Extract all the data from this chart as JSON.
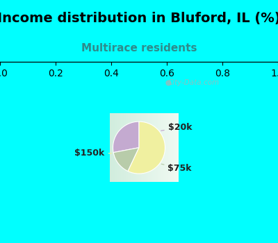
{
  "title": "Income distribution in Bluford, IL (%)",
  "subtitle": "Multirace residents",
  "title_color": "#000000",
  "subtitle_color": "#2e8b8b",
  "slices": [
    {
      "label": "$20k",
      "value": 28,
      "color": "#c4aad0"
    },
    {
      "label": "$75k",
      "value": 15,
      "color": "#b8ccaa"
    },
    {
      "label": "$150k",
      "value": 57,
      "color": "#f0f0a0"
    }
  ],
  "bg_color_top": "#00ffff",
  "chart_bg_left": "#c8e8d8",
  "chart_bg_right": "#e8f8f0",
  "watermark": "City-Data.com",
  "label_fontsize": 9,
  "title_fontsize": 14,
  "subtitle_fontsize": 11,
  "startangle": 90
}
